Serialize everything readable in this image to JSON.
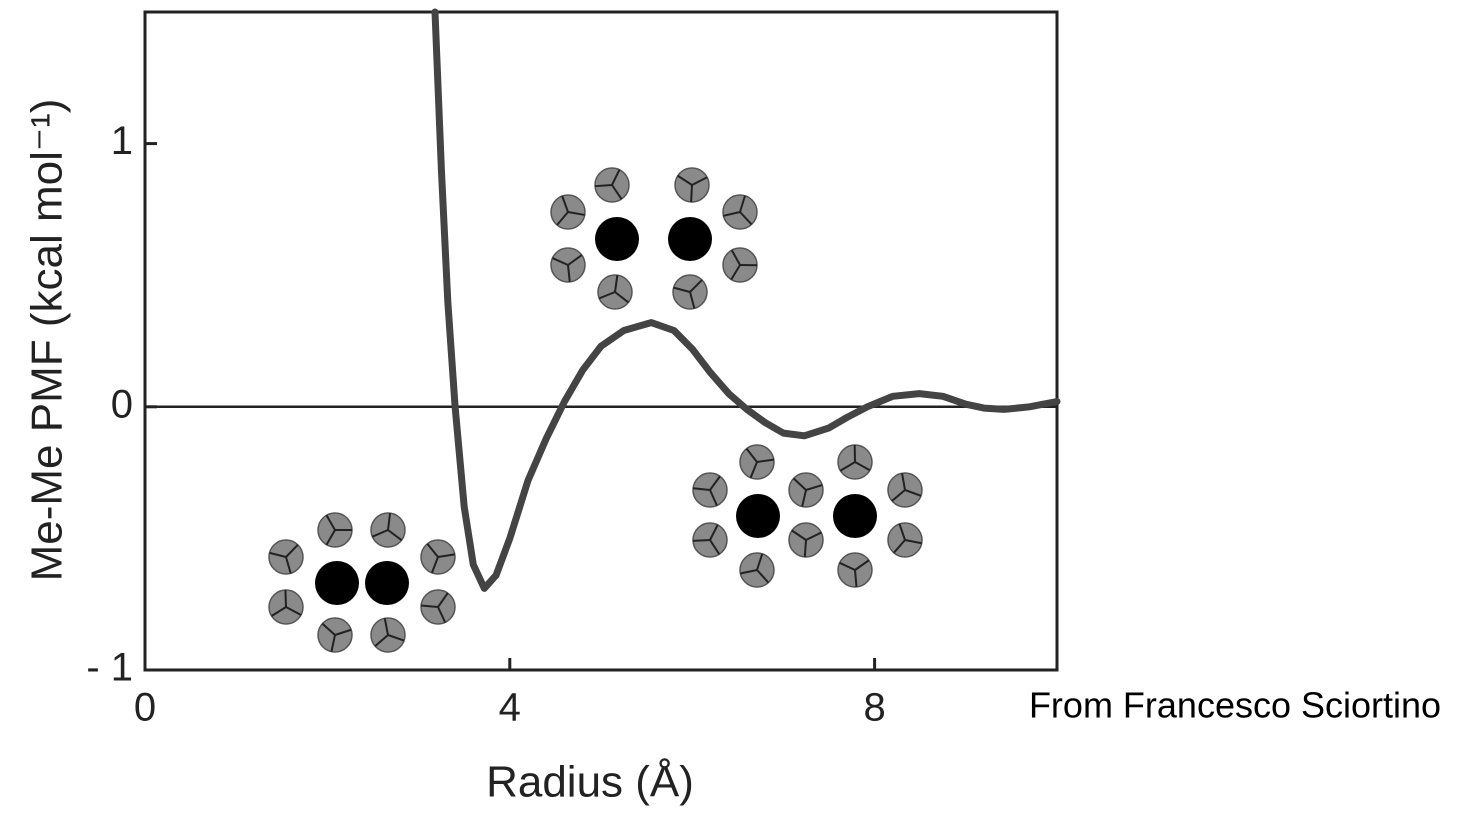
{
  "chart_data": {
    "type": "line",
    "xlabel": "Radius (Å)",
    "ylabel": "Me-Me PMF (kcal mol⁻¹)",
    "annotation": "From Francesco Sciortino",
    "xlim": [
      0,
      10
    ],
    "xticks": [
      0,
      4,
      8
    ],
    "ylim": [
      -1,
      1.5
    ],
    "yticks": [
      {
        "value": -1,
        "label": "- 1"
      },
      0,
      1
    ],
    "zero_line": true,
    "series": [
      {
        "color": "#444444",
        "x": [
          3.18,
          3.25,
          3.32,
          3.4,
          3.5,
          3.6,
          3.72,
          3.85,
          4.0,
          4.2,
          4.4,
          4.6,
          4.8,
          5.0,
          5.25,
          5.55,
          5.8,
          6.0,
          6.2,
          6.4,
          6.6,
          6.8,
          7.0,
          7.23,
          7.5,
          7.7,
          7.92,
          8.2,
          8.49,
          8.75,
          9.0,
          9.2,
          9.42,
          9.7,
          10
        ],
        "values": [
          1.5,
          0.9,
          0.4,
          0.0,
          -0.38,
          -0.6,
          -0.69,
          -0.64,
          -0.5,
          -0.28,
          -0.12,
          0.02,
          0.14,
          0.23,
          0.29,
          0.32,
          0.29,
          0.22,
          0.13,
          0.05,
          -0.01,
          -0.06,
          -0.1,
          -0.11,
          -0.08,
          -0.04,
          0.0,
          0.04,
          0.05,
          0.04,
          0.01,
          -0.005,
          -0.01,
          0.0,
          0.02
        ]
      }
    ]
  }
}
